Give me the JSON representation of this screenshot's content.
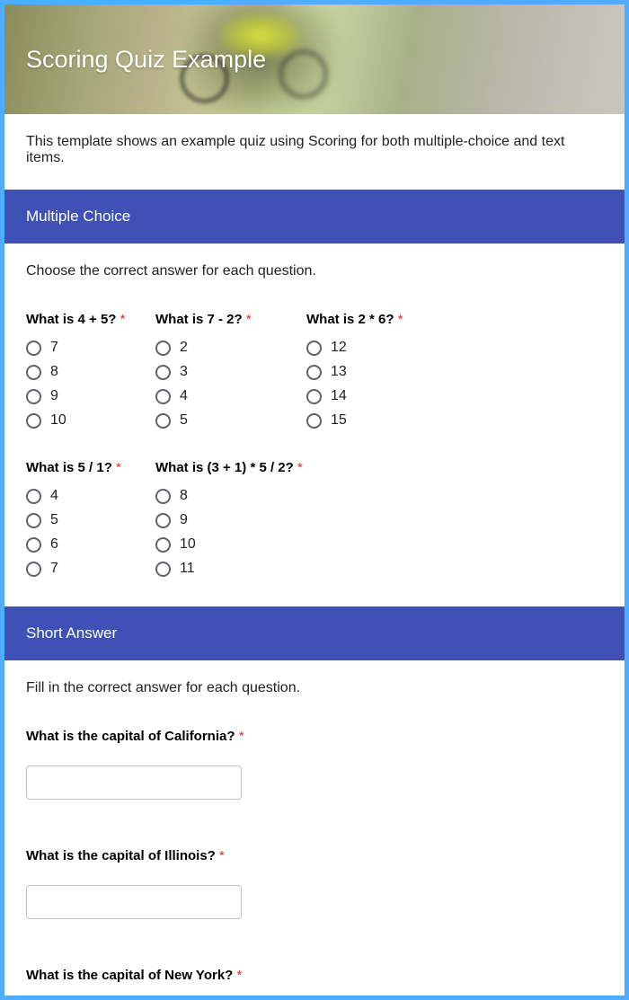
{
  "colors": {
    "page_background": "#4facfe",
    "form_background": "#ffffff",
    "section_header_bg": "#3f51b5",
    "section_header_text": "#ffffff",
    "text_primary": "#202124",
    "required_star": "#d93025",
    "radio_border": "#5f6368",
    "input_border": "#c0c0c0",
    "header_title_color": "#ffffff"
  },
  "header": {
    "title": "Scoring Quiz Example"
  },
  "description": "This template shows an example quiz using Scoring for both multiple-choice and text items.",
  "sections": {
    "multiple_choice": {
      "title": "Multiple Choice",
      "instructions": "Choose the correct answer for each question.",
      "questions": [
        {
          "label": "What is 4 + 5?",
          "required": true,
          "options": [
            "7",
            "8",
            "9",
            "10"
          ]
        },
        {
          "label": "What is 7 - 2?",
          "required": true,
          "options": [
            "2",
            "3",
            "4",
            "5"
          ]
        },
        {
          "label": "What is 2 * 6?",
          "required": true,
          "options": [
            "12",
            "13",
            "14",
            "15"
          ]
        },
        {
          "label": "What is 5 / 1?",
          "required": true,
          "options": [
            "4",
            "5",
            "6",
            "7"
          ]
        },
        {
          "label": "What is (3 + 1) * 5 / 2?",
          "required": true,
          "options": [
            "8",
            "9",
            "10",
            "11"
          ]
        }
      ]
    },
    "short_answer": {
      "title": "Short Answer",
      "instructions": "Fill in the correct answer for each question.",
      "questions": [
        {
          "label": "What is the capital of California?",
          "required": true
        },
        {
          "label": "What is the capital of Illinois?",
          "required": true
        },
        {
          "label": "What is the capital of New York?",
          "required": true
        }
      ]
    }
  },
  "required_marker": "*"
}
